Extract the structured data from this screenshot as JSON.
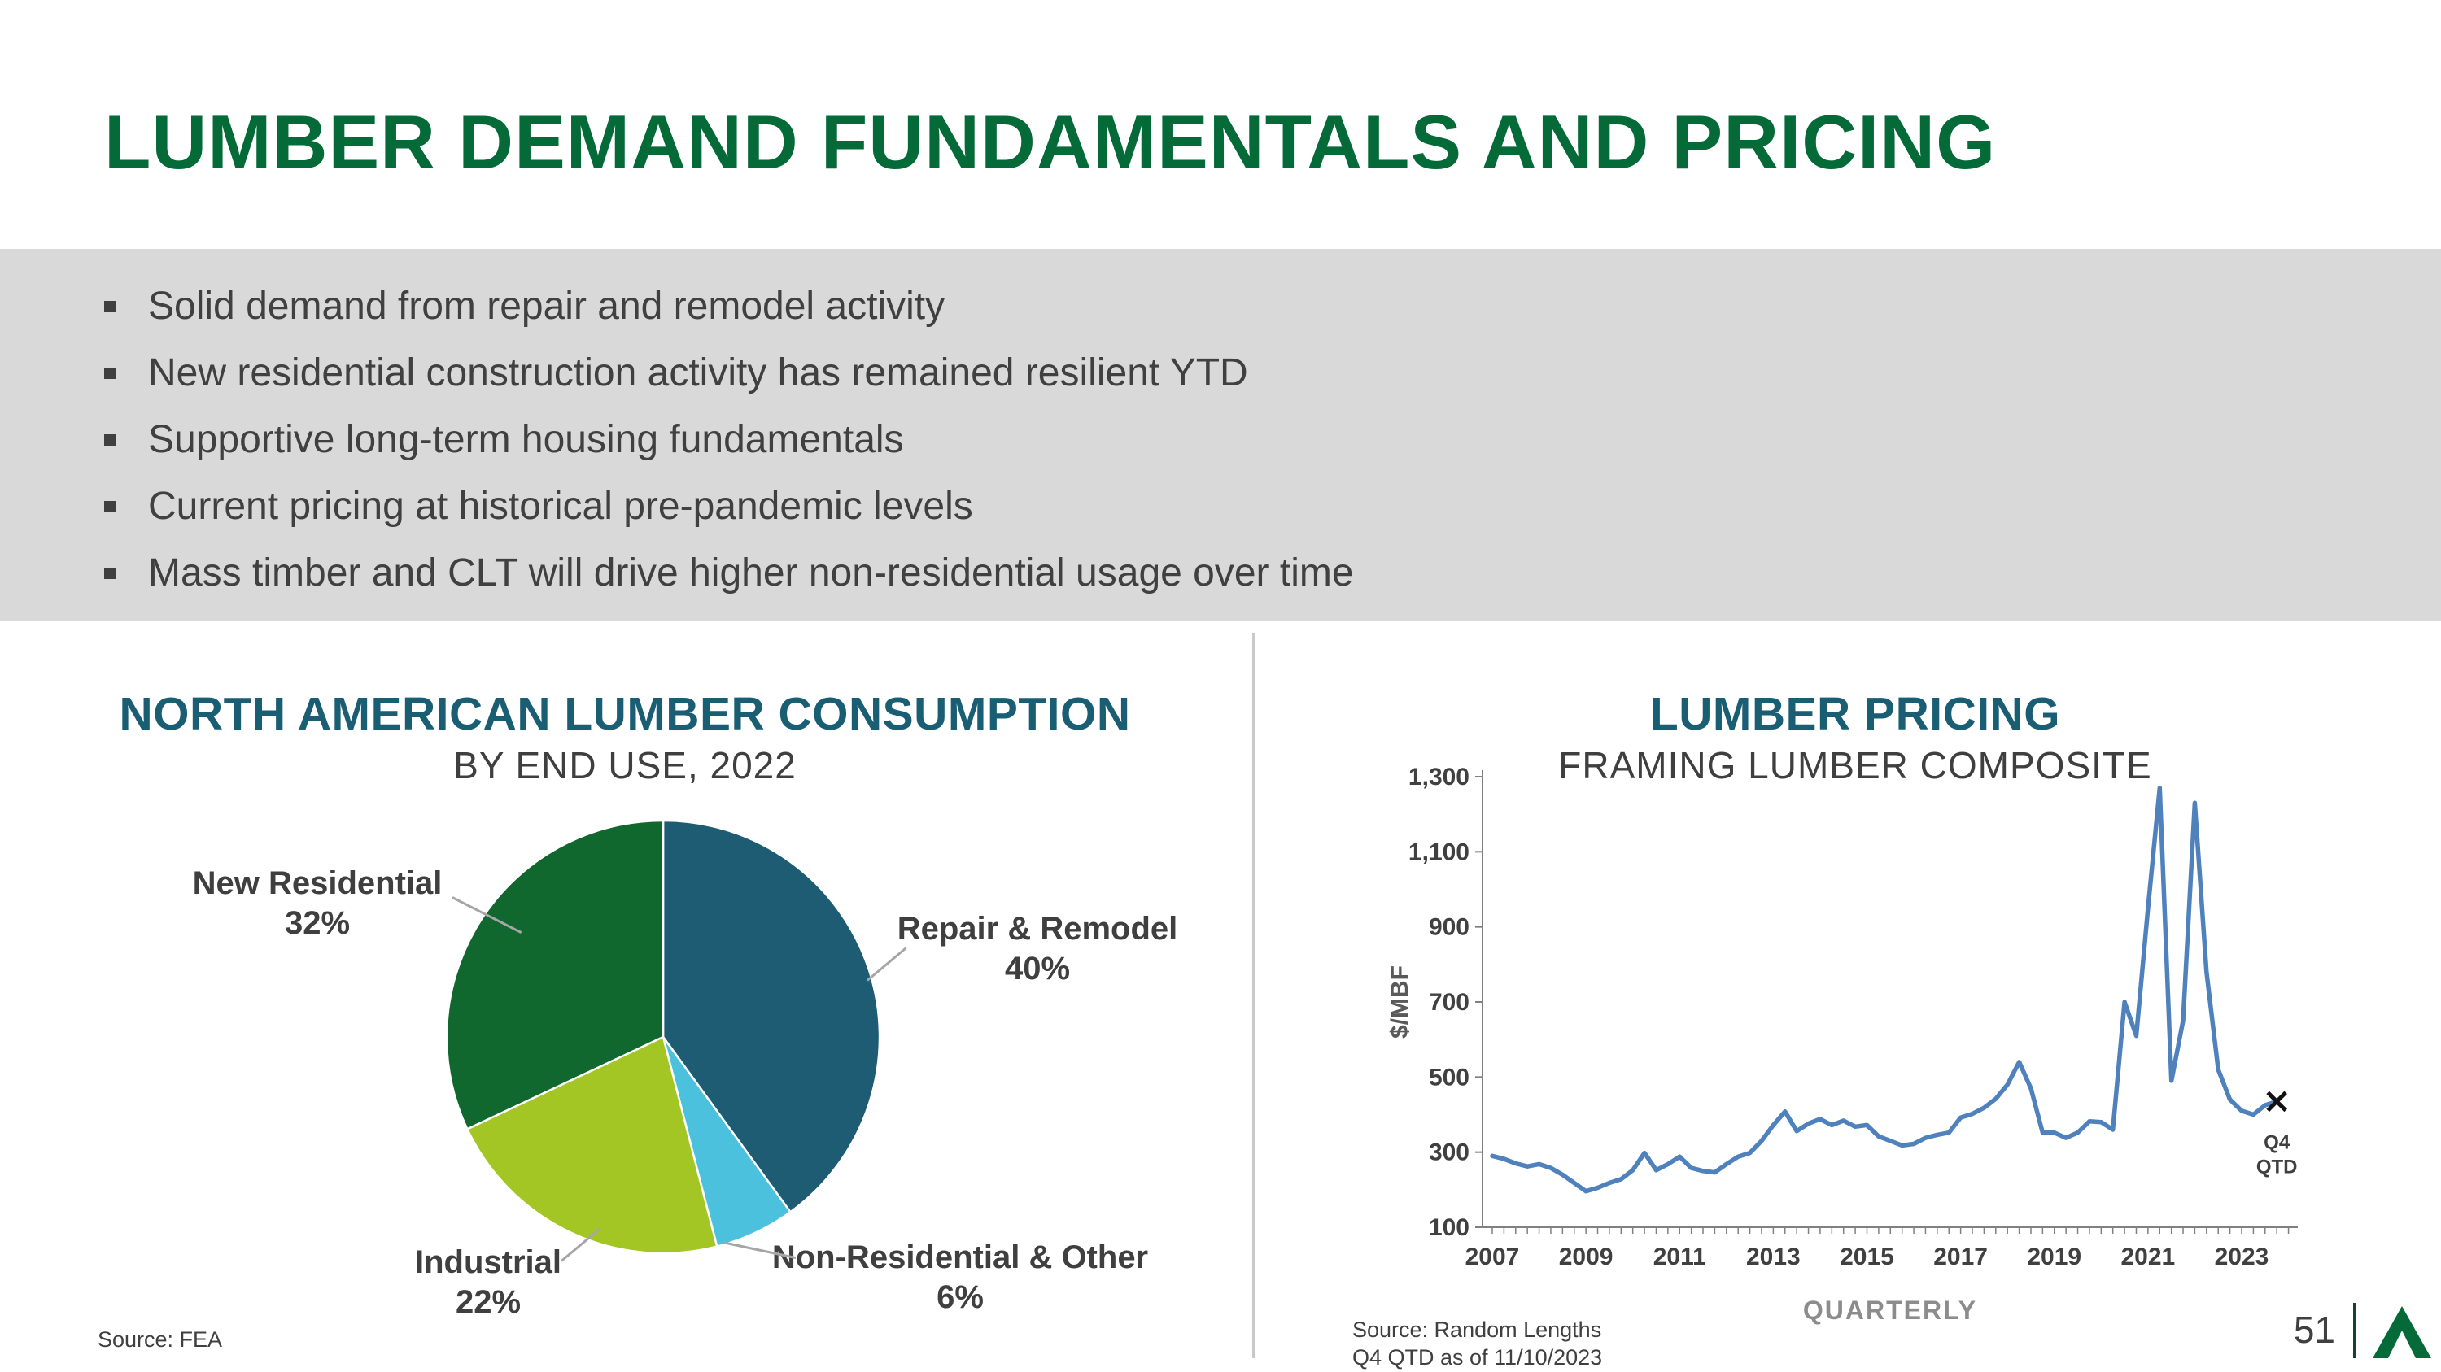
{
  "slide": {
    "title": "LUMBER DEMAND FUNDAMENTALS AND PRICING",
    "page_number": "51",
    "colors": {
      "title_green": "#046A38",
      "chart_title_blue": "#1A5E74",
      "band_gray": "#D9D9D9",
      "line_blue": "#4F81BD",
      "logo_green": "#046A38"
    }
  },
  "bullets": [
    "Solid demand from repair and remodel activity",
    "New residential construction activity has remained resilient YTD",
    "Supportive long-term housing fundamentals",
    "Current pricing at historical pre-pandemic levels",
    "Mass timber and CLT will drive higher non-residential usage over time"
  ],
  "chart_data": [
    {
      "type": "pie",
      "title": "NORTH AMERICAN LUMBER CONSUMPTION",
      "subtitle": "BY END USE, 2022",
      "slices": [
        {
          "label": "Repair & Remodel",
          "pct": 40,
          "pct_label": "40%",
          "color": "#1E5C74"
        },
        {
          "label": "Non-Residential & Other",
          "pct": 6,
          "pct_label": "6%",
          "color": "#4BC1DE"
        },
        {
          "label": "Industrial",
          "pct": 22,
          "pct_label": "22%",
          "color": "#A3C625"
        },
        {
          "label": "New Residential",
          "pct": 32,
          "pct_label": "32%",
          "color": "#11682F"
        }
      ],
      "source": "Source: FEA"
    },
    {
      "type": "line",
      "title": "LUMBER PRICING",
      "subtitle": "FRAMING LUMBER COMPOSITE",
      "ylabel": "$/MBF",
      "xlabel": "QUARTERLY",
      "ylim": [
        100,
        1300
      ],
      "yticks": [
        "100",
        "300",
        "500",
        "700",
        "900",
        "1,100",
        "1,300"
      ],
      "xticks": [
        "2007",
        "2009",
        "2011",
        "2013",
        "2015",
        "2017",
        "2019",
        "2021",
        "2023"
      ],
      "x_start": "2007 Q1",
      "x_end": "2023 Q4",
      "line_color": "#4F81BD",
      "values_quarterly": [
        290,
        282,
        270,
        262,
        268,
        258,
        240,
        218,
        196,
        205,
        218,
        228,
        252,
        298,
        252,
        268,
        288,
        258,
        250,
        246,
        268,
        288,
        298,
        330,
        372,
        408,
        356,
        376,
        388,
        372,
        384,
        368,
        372,
        342,
        330,
        318,
        322,
        338,
        346,
        352,
        392,
        402,
        418,
        442,
        480,
        540,
        470,
        352,
        352,
        338,
        352,
        382,
        380,
        360,
        700,
        610,
        950,
        1270,
        490,
        650,
        1230,
        780,
        520,
        440,
        410,
        400,
        425,
        435
      ],
      "end_marker_label_lines": [
        "Q4",
        "QTD"
      ],
      "source_lines": [
        "Source: Random Lengths",
        "Q4 QTD as of 11/10/2023"
      ]
    }
  ]
}
